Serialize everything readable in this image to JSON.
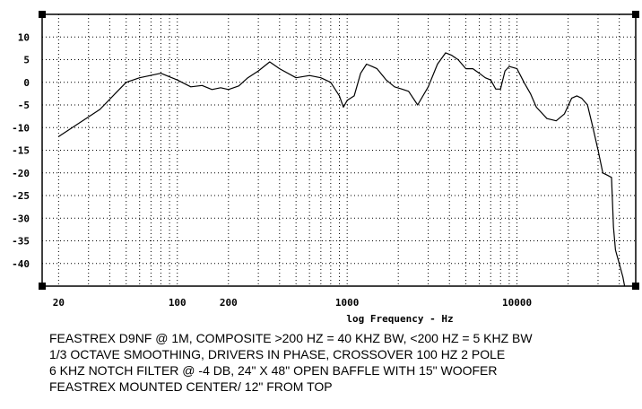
{
  "chart_data": {
    "type": "line",
    "title": "",
    "xlabel": "log Frequency - Hz",
    "ylabel": "",
    "xscale": "log",
    "xlim": [
      16,
      50000
    ],
    "ylim": [
      -45,
      15
    ],
    "grid": true,
    "y_ticks": [
      10,
      5,
      0,
      -5,
      -10,
      -15,
      -20,
      -25,
      -30,
      -35,
      -40
    ],
    "x_tick_labels": [
      {
        "value": 20,
        "label": "20"
      },
      {
        "value": 100,
        "label": "100"
      },
      {
        "value": 200,
        "label": "200"
      },
      {
        "value": 1000,
        "label": "1000"
      },
      {
        "value": 10000,
        "label": "10000"
      }
    ],
    "series": [
      {
        "x": [
          20,
          35,
          50,
          60,
          80,
          100,
          120,
          140,
          160,
          180,
          200,
          230,
          260,
          300,
          350,
          400,
          500,
          600,
          700,
          800,
          900,
          950,
          1000,
          1100,
          1200,
          1300,
          1400,
          1500,
          1700,
          1900,
          2100,
          2300,
          2600,
          3000,
          3400,
          3800,
          4100,
          4500,
          5000,
          5500,
          6000,
          6500,
          7000,
          7500,
          8000,
          8500,
          9000,
          10000,
          11000,
          12000,
          13000,
          15000,
          17000,
          19000,
          21000,
          22500,
          24000,
          26000,
          28000,
          30000,
          32000,
          34000,
          36000,
          37000,
          38000,
          40000,
          42000,
          43000
        ],
        "y": [
          -12,
          -6,
          0,
          1,
          2,
          0.5,
          -1,
          -0.7,
          -1.6,
          -1.2,
          -1.6,
          -0.8,
          1,
          2.5,
          4.5,
          3,
          1,
          1.5,
          1,
          0,
          -3,
          -5.5,
          -4,
          -3,
          2,
          4,
          3.5,
          3,
          0.5,
          -1,
          -1.5,
          -2,
          -5,
          -1,
          4,
          6.5,
          6,
          5,
          3,
          3,
          2,
          1,
          0.5,
          -1.5,
          -1.5,
          2.5,
          3.5,
          3,
          0,
          -2.5,
          -5.5,
          -8,
          -8.5,
          -7,
          -3.5,
          -3,
          -3.5,
          -5,
          -10,
          -15,
          -20,
          -20.5,
          -21,
          -32,
          -37,
          -40,
          -43,
          -45
        ]
      }
    ]
  },
  "caption_lines": [
    "FEASTREX D9NF @ 1M,  COMPOSITE >200 HZ = 40 KHZ BW, <200 HZ = 5 KHZ BW",
    "1/3 OCTAVE SMOOTHING,  DRIVERS IN PHASE,  CROSSOVER 100 HZ 2 POLE",
    "6 KHZ NOTCH FILTER @ -4 DB,  24\" X 48\" OPEN BAFFLE WITH 15\" WOOFER",
    "FEASTREX MOUNTED CENTER/ 12\" FROM TOP"
  ]
}
